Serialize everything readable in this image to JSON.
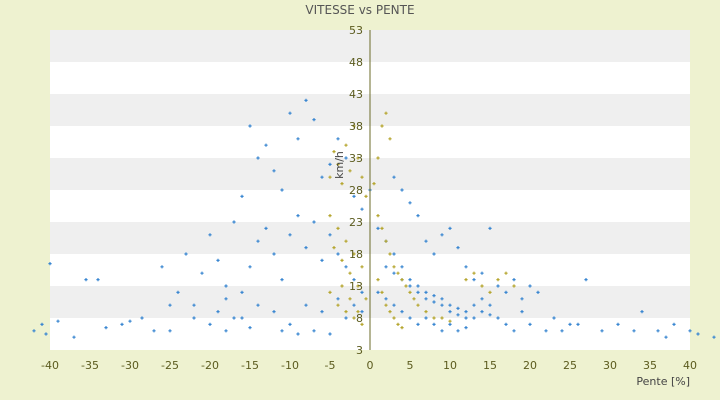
{
  "chart_data": {
    "type": "scatter",
    "title": "VITESSE vs PENTE",
    "xlabel": "Pente [%]",
    "ylabel": "km/h",
    "xlim": [
      -40,
      40
    ],
    "ylim": [
      3,
      53
    ],
    "x_ticks": [
      -40,
      -35,
      -30,
      -25,
      -20,
      -15,
      -10,
      -5,
      0,
      5,
      10,
      15,
      20,
      25,
      30,
      35,
      40
    ],
    "y_ticks": [
      3,
      8,
      13,
      18,
      23,
      28,
      33,
      38,
      43,
      48,
      53
    ],
    "grid": "horizontal alternating bands",
    "legend": "none",
    "colors": {
      "background": "#eef2d0",
      "band_light": "#ffffff",
      "band_dark": "#efefef",
      "series_main": "#3a87d1",
      "series_overlay": "#b6a630",
      "axis_line": "#6b6b2a"
    },
    "series": [
      {
        "color": "#3a87d1",
        "marker": "plus",
        "points": [
          [
            -42,
            6
          ],
          [
            -41,
            7
          ],
          [
            -40.5,
            5.5
          ],
          [
            -40,
            16.5
          ],
          [
            -39,
            7.5
          ],
          [
            -37,
            5
          ],
          [
            -35.5,
            14
          ],
          [
            -34,
            14
          ],
          [
            -33,
            6.5
          ],
          [
            -31,
            7
          ],
          [
            -30,
            7.5
          ],
          [
            -28.5,
            8
          ],
          [
            -27,
            6
          ],
          [
            -26,
            16
          ],
          [
            -25,
            10
          ],
          [
            -24,
            12
          ],
          [
            -23,
            18
          ],
          [
            -22,
            10
          ],
          [
            -21,
            15
          ],
          [
            -20,
            21
          ],
          [
            -19,
            17
          ],
          [
            -18,
            11
          ],
          [
            -17,
            23
          ],
          [
            -16,
            27
          ],
          [
            -15,
            38
          ],
          [
            -14,
            33
          ],
          [
            -13,
            35
          ],
          [
            -12,
            31
          ],
          [
            -11,
            28
          ],
          [
            -10,
            40
          ],
          [
            -9,
            36
          ],
          [
            -8,
            42
          ],
          [
            -7,
            39
          ],
          [
            -6,
            30
          ],
          [
            -5,
            32
          ],
          [
            -4,
            36
          ],
          [
            -3,
            33
          ],
          [
            -2,
            27
          ],
          [
            -1,
            25
          ],
          [
            0,
            28
          ],
          [
            -20,
            7
          ],
          [
            -19,
            9
          ],
          [
            -18,
            13
          ],
          [
            -17,
            8
          ],
          [
            -16,
            12
          ],
          [
            -15,
            16
          ],
          [
            -14,
            20
          ],
          [
            -13,
            22
          ],
          [
            -12,
            18
          ],
          [
            -11,
            14
          ],
          [
            -10,
            21
          ],
          [
            -9,
            24
          ],
          [
            -8,
            19
          ],
          [
            -7,
            23
          ],
          [
            -6,
            17
          ],
          [
            -5,
            21
          ],
          [
            -4,
            18
          ],
          [
            -3,
            16
          ],
          [
            -2,
            14
          ],
          [
            -1,
            12
          ],
          [
            -18,
            6
          ],
          [
            -16,
            8
          ],
          [
            -14,
            10
          ],
          [
            -12,
            9
          ],
          [
            -10,
            7
          ],
          [
            -8,
            10
          ],
          [
            -6,
            9
          ],
          [
            -4,
            11
          ],
          [
            -3,
            8
          ],
          [
            -2,
            10
          ],
          [
            -1,
            9
          ],
          [
            -25,
            6
          ],
          [
            -22,
            8
          ],
          [
            -15,
            6.5
          ],
          [
            -11,
            6
          ],
          [
            -9,
            5.5
          ],
          [
            -7,
            6
          ],
          [
            -5,
            5.5
          ],
          [
            1,
            22
          ],
          [
            2,
            20
          ],
          [
            3,
            18
          ],
          [
            4,
            16
          ],
          [
            5,
            14
          ],
          [
            6,
            13
          ],
          [
            7,
            12
          ],
          [
            8,
            11.5
          ],
          [
            9,
            11
          ],
          [
            10,
            10
          ],
          [
            11,
            9.5
          ],
          [
            12,
            9
          ],
          [
            13,
            10
          ],
          [
            14,
            11
          ],
          [
            15,
            10
          ],
          [
            16,
            8
          ],
          [
            17,
            7
          ],
          [
            18,
            6
          ],
          [
            19,
            9
          ],
          [
            20,
            7
          ],
          [
            21,
            12
          ],
          [
            22,
            6
          ],
          [
            23,
            8
          ],
          [
            24,
            6
          ],
          [
            25,
            7
          ],
          [
            2,
            16
          ],
          [
            3,
            15
          ],
          [
            4,
            14
          ],
          [
            5,
            13
          ],
          [
            6,
            12
          ],
          [
            7,
            11
          ],
          [
            8,
            10.5
          ],
          [
            9,
            10
          ],
          [
            10,
            9
          ],
          [
            11,
            8.5
          ],
          [
            12,
            8
          ],
          [
            13,
            8
          ],
          [
            14,
            9
          ],
          [
            15,
            8.5
          ],
          [
            1,
            12
          ],
          [
            2,
            11
          ],
          [
            3,
            10
          ],
          [
            4,
            9
          ],
          [
            5,
            8
          ],
          [
            6,
            7
          ],
          [
            7,
            8
          ],
          [
            8,
            7
          ],
          [
            9,
            6
          ],
          [
            10,
            7
          ],
          [
            11,
            6
          ],
          [
            12,
            6.5
          ],
          [
            3,
            30
          ],
          [
            4,
            28
          ],
          [
            5,
            26
          ],
          [
            6,
            24
          ],
          [
            7,
            20
          ],
          [
            8,
            18
          ],
          [
            9,
            21
          ],
          [
            10,
            22
          ],
          [
            11,
            19
          ],
          [
            12,
            16
          ],
          [
            13,
            14
          ],
          [
            14,
            15
          ],
          [
            15,
            22
          ],
          [
            16,
            13
          ],
          [
            17,
            12
          ],
          [
            18,
            14
          ],
          [
            19,
            11
          ],
          [
            20,
            13
          ],
          [
            26,
            7
          ],
          [
            27,
            14
          ],
          [
            29,
            6
          ],
          [
            31,
            7
          ],
          [
            33,
            6
          ],
          [
            34,
            9
          ],
          [
            36,
            6
          ],
          [
            37,
            5
          ],
          [
            38,
            7
          ],
          [
            40,
            6
          ],
          [
            41,
            5.5
          ],
          [
            43,
            5
          ]
        ]
      },
      {
        "color": "#b6a630",
        "marker": "plus",
        "points": [
          [
            -5,
            30
          ],
          [
            -4.5,
            34
          ],
          [
            -4,
            32
          ],
          [
            -3.5,
            29
          ],
          [
            -3,
            35
          ],
          [
            -2.5,
            31
          ],
          [
            -2,
            38
          ],
          [
            -1.5,
            33
          ],
          [
            -1,
            30
          ],
          [
            -0.5,
            27
          ],
          [
            -5,
            24
          ],
          [
            -4,
            22
          ],
          [
            -3,
            20
          ],
          [
            -2,
            18
          ],
          [
            -1,
            16
          ],
          [
            -4.5,
            19
          ],
          [
            -3.5,
            17
          ],
          [
            -2.5,
            15
          ],
          [
            -1.5,
            13
          ],
          [
            -0.5,
            11
          ],
          [
            -5,
            12
          ],
          [
            -4,
            10
          ],
          [
            -3,
            9
          ],
          [
            -2,
            8
          ],
          [
            -1,
            7
          ],
          [
            -3.5,
            13
          ],
          [
            -2.5,
            11
          ],
          [
            -1.5,
            9
          ],
          [
            0.5,
            29
          ],
          [
            1,
            33
          ],
          [
            1.5,
            38
          ],
          [
            2,
            40
          ],
          [
            2.5,
            36
          ],
          [
            1,
            24
          ],
          [
            1.5,
            22
          ],
          [
            2,
            20
          ],
          [
            2.5,
            18
          ],
          [
            3,
            16
          ],
          [
            3.5,
            15
          ],
          [
            4,
            14
          ],
          [
            4.5,
            13
          ],
          [
            5,
            12
          ],
          [
            5.5,
            11
          ],
          [
            6,
            10
          ],
          [
            7,
            9
          ],
          [
            8,
            8
          ],
          [
            9,
            8
          ],
          [
            10,
            7.5
          ],
          [
            1,
            14
          ],
          [
            1.5,
            12
          ],
          [
            2,
            10
          ],
          [
            2.5,
            9
          ],
          [
            3,
            8
          ],
          [
            3.5,
            7
          ],
          [
            4,
            6.5
          ],
          [
            12,
            14
          ],
          [
            13,
            15
          ],
          [
            14,
            13
          ],
          [
            15,
            12
          ],
          [
            16,
            14
          ],
          [
            17,
            15
          ],
          [
            18,
            13
          ]
        ]
      }
    ]
  }
}
